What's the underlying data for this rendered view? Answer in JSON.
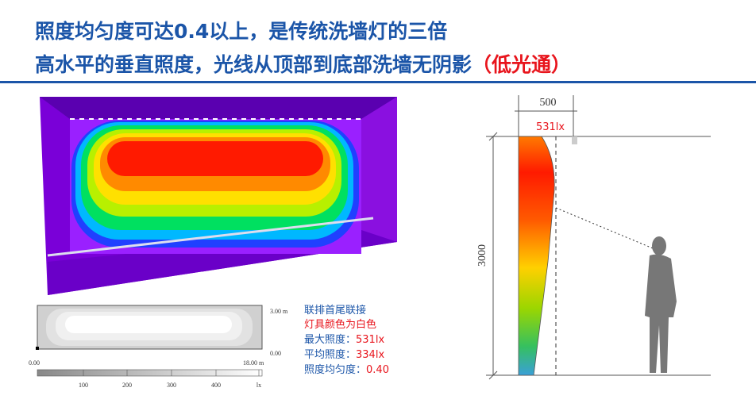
{
  "header": {
    "line1": "照度均匀度可达0.4以上，是传统洗墙灯的三倍",
    "line2": "高水平的垂直照度，光线从顶部到底部洗墙无阴影",
    "line2_highlight": "（低光通）"
  },
  "plan": {
    "height_label": "3.00 m",
    "top_zero": "0.00",
    "left_zero": "0.00",
    "length_label": "18.00 m",
    "scale": [
      "100",
      "200",
      "300",
      "400",
      "lx"
    ]
  },
  "notes": {
    "line1": "联排首尾联接",
    "line2": "灯具颜色为白色",
    "max_label": "最大照度：",
    "max_value": "531lx",
    "avg_label": "平均照度：",
    "avg_value": "334lx",
    "uni_label": "照度均匀度：",
    "uni_value": "0.40"
  },
  "section": {
    "width": "500",
    "peak": "531lx",
    "height": "3000"
  }
}
